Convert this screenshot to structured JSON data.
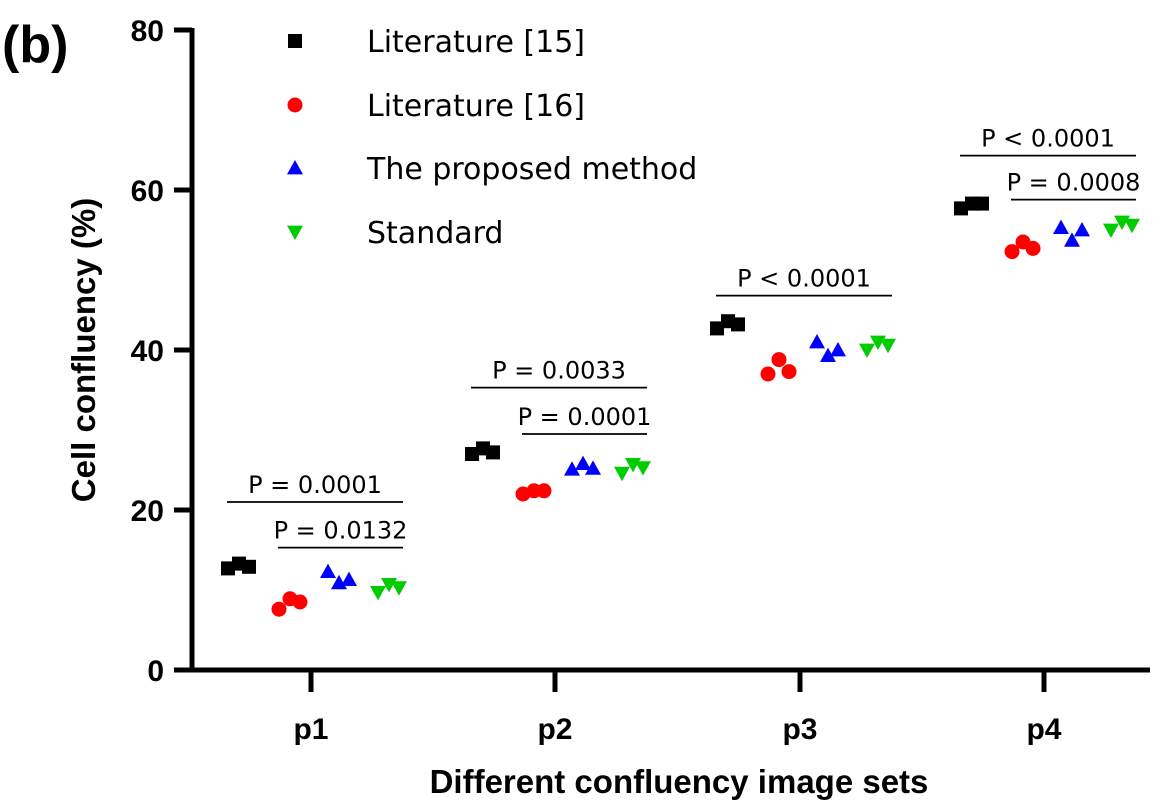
{
  "panel_label": "(b)",
  "chart_data": {
    "type": "scatter",
    "xlabel": "Different confluency image sets",
    "ylabel": "Cell confluency (%)",
    "ylim": [
      0,
      80
    ],
    "yticks": [
      "0",
      "20",
      "40",
      "60",
      "80"
    ],
    "categories": [
      "p1",
      "p2",
      "p3",
      "p4"
    ],
    "grid": false,
    "legend_position": "top-left",
    "series": [
      {
        "name": "Literature [15]",
        "marker": "square",
        "color": "#000000",
        "values": [
          [
            12.7,
            13.3,
            12.9
          ],
          [
            27.0,
            27.7,
            27.2
          ],
          [
            42.7,
            43.6,
            43.2
          ],
          [
            57.7,
            58.3,
            58.3
          ]
        ]
      },
      {
        "name": "Literature [16]",
        "marker": "circle",
        "color": "#ff0000",
        "values": [
          [
            7.6,
            8.9,
            8.5
          ],
          [
            22.0,
            22.4,
            22.4
          ],
          [
            37.0,
            38.8,
            37.3
          ],
          [
            52.3,
            53.5,
            52.7
          ]
        ]
      },
      {
        "name": "The proposed method",
        "marker": "triangle-up",
        "color": "#0000ff",
        "values": [
          [
            12.3,
            10.9,
            11.3
          ],
          [
            25.1,
            25.8,
            25.2
          ],
          [
            41.0,
            39.3,
            40.0
          ],
          [
            55.3,
            53.7,
            55.0
          ]
        ]
      },
      {
        "name": "Standard",
        "marker": "triangle-down",
        "color": "#00cc00",
        "values": [
          [
            9.7,
            10.7,
            10.3
          ],
          [
            24.6,
            25.7,
            25.3
          ],
          [
            40.0,
            41.0,
            40.6
          ],
          [
            55.0,
            56.0,
            55.6
          ]
        ]
      }
    ],
    "significance": [
      {
        "category": "p1",
        "from_series": 0,
        "to_series": 3,
        "label": "P = 0.0001",
        "y": 21.0
      },
      {
        "category": "p1",
        "from_series": 1,
        "to_series": 3,
        "label": "P = 0.0132",
        "y": 15.3
      },
      {
        "category": "p2",
        "from_series": 0,
        "to_series": 3,
        "label": "P = 0.0033",
        "y": 35.3
      },
      {
        "category": "p2",
        "from_series": 1,
        "to_series": 3,
        "label": "P = 0.0001",
        "y": 29.5
      },
      {
        "category": "p3",
        "from_series": 0,
        "to_series": 3,
        "label": "P < 0.0001",
        "y": 46.8
      },
      {
        "category": "p4",
        "from_series": 0,
        "to_series": 3,
        "label": "P < 0.0001",
        "y": 64.3
      },
      {
        "category": "p4",
        "from_series": 1,
        "to_series": 3,
        "label": "P = 0.0008",
        "y": 58.8
      }
    ]
  }
}
